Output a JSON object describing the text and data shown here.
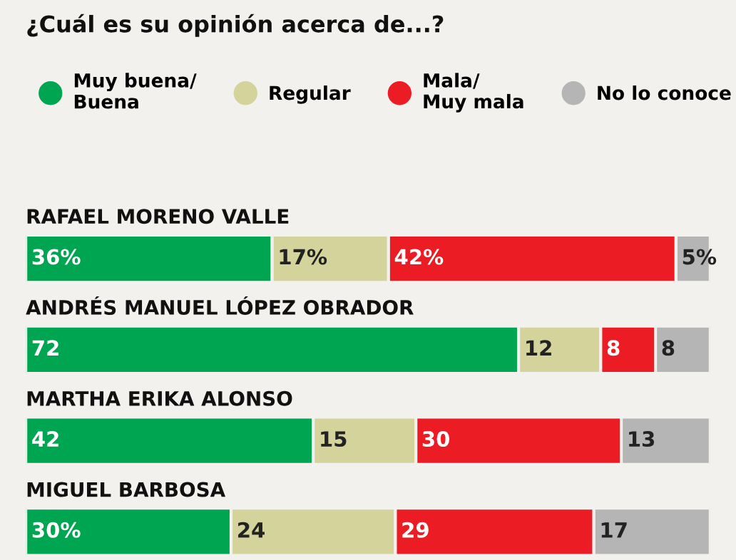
{
  "chart_data": {
    "type": "bar",
    "orientation": "horizontal",
    "stacked": true,
    "title": "¿Cuál es su opinión acerca de...?",
    "legend": "top",
    "categories": [
      "RAFAEL MORENO VALLE",
      "ANDRÉS MANUEL LÓPEZ OBRADOR",
      "MARTHA ERIKA ALONSO",
      "MIGUEL BARBOSA"
    ],
    "series": [
      {
        "name": "Muy buena/\nBuena",
        "color": "#00a551",
        "values": [
          36,
          72,
          42,
          30
        ],
        "value_labels": [
          "36%",
          "72",
          "42",
          "30%"
        ]
      },
      {
        "name": "Regular",
        "color": "#d3d39b",
        "values": [
          17,
          12,
          15,
          24
        ],
        "value_labels": [
          "17%",
          "12",
          "15",
          "24"
        ]
      },
      {
        "name": "Mala/\nMuy mala",
        "color": "#ec1c24",
        "values": [
          42,
          8,
          30,
          29
        ],
        "value_labels": [
          "42%",
          "8",
          "30",
          "29"
        ]
      },
      {
        "name": "No lo conoce",
        "color": "#b5b5b5",
        "values": [
          5,
          8,
          13,
          17
        ],
        "value_labels": [
          "5%",
          "8",
          "13",
          "17"
        ]
      }
    ]
  }
}
